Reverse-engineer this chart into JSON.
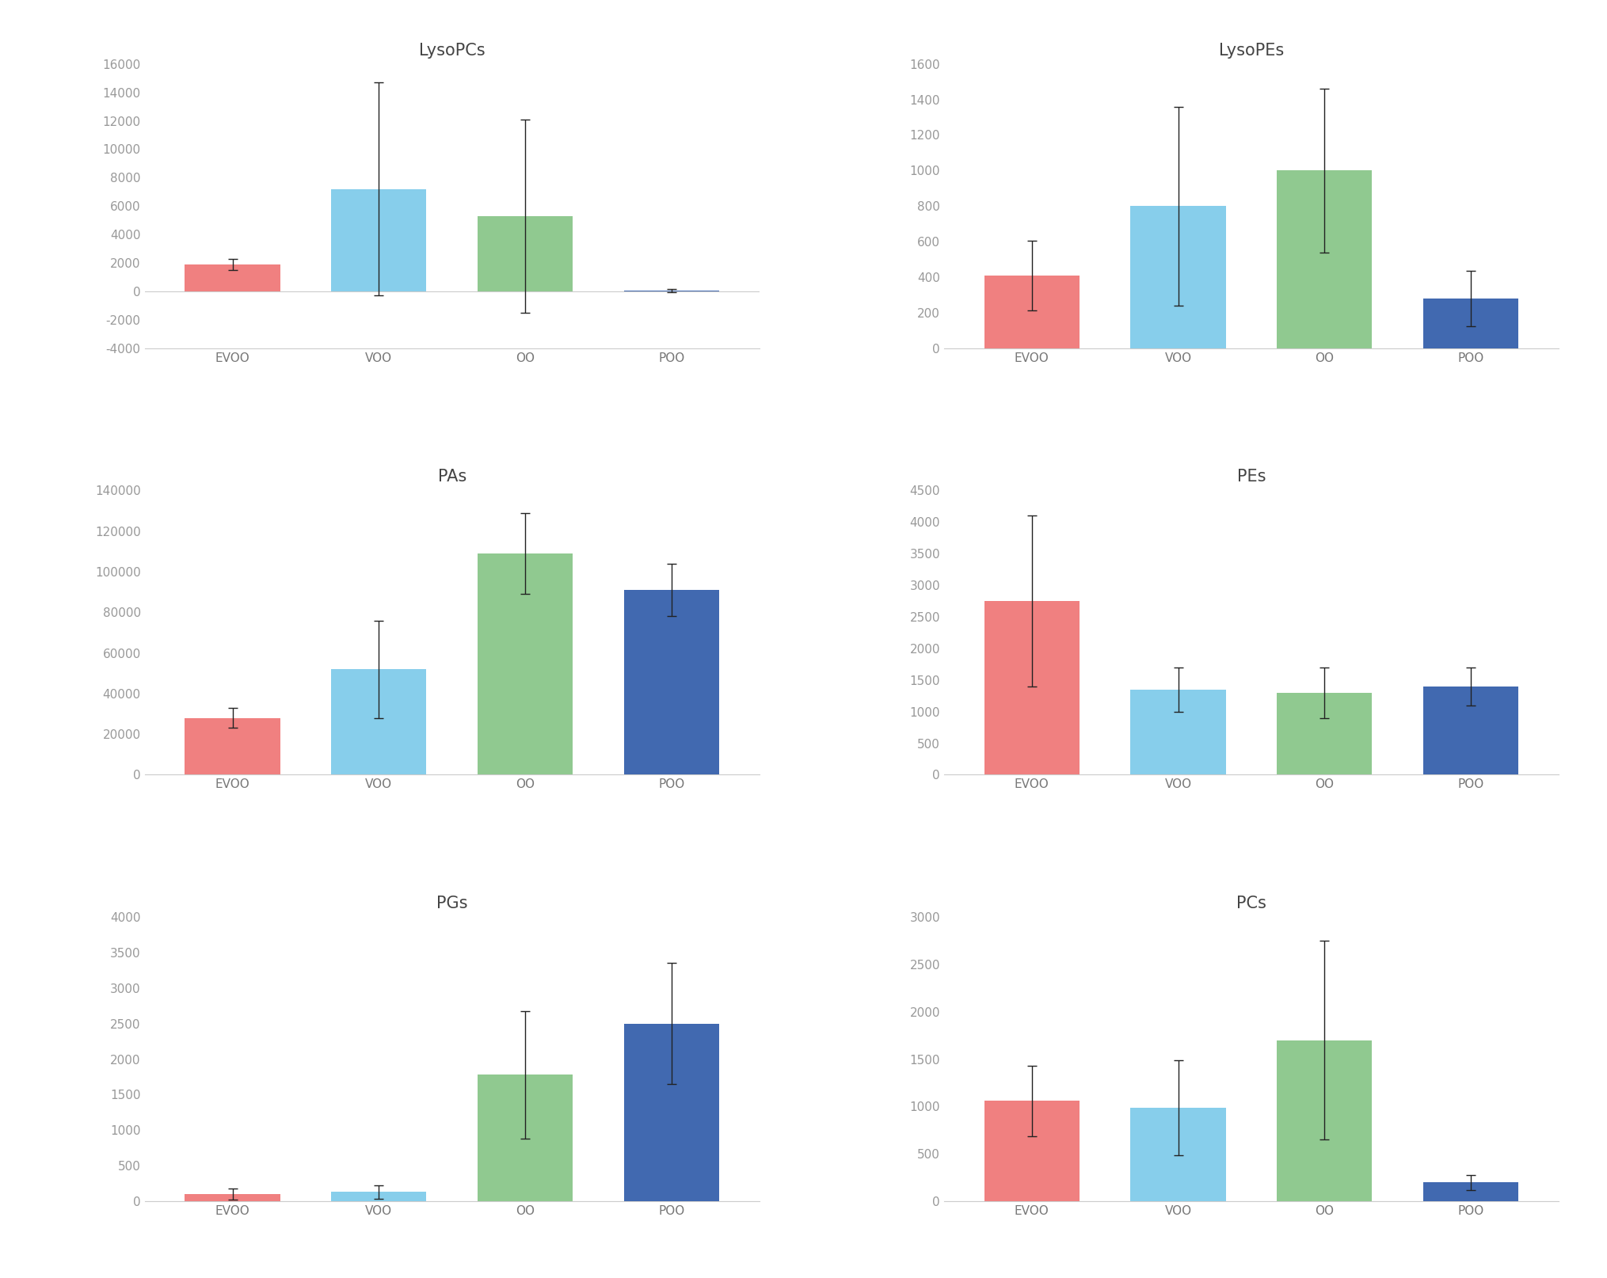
{
  "charts": [
    {
      "title": "LysoPCs",
      "values": [
        1900,
        7200,
        5300,
        50
      ],
      "errors": [
        400,
        7500,
        6800,
        100
      ],
      "ylim": [
        -4000,
        16000
      ],
      "yticks": [
        -4000,
        -2000,
        0,
        2000,
        4000,
        6000,
        8000,
        10000,
        12000,
        14000,
        16000
      ]
    },
    {
      "title": "LysoPEs",
      "values": [
        410,
        800,
        1000,
        280
      ],
      "errors": [
        195,
        560,
        460,
        155
      ],
      "ylim": [
        0,
        1600
      ],
      "yticks": [
        0,
        200,
        400,
        600,
        800,
        1000,
        1200,
        1400,
        1600
      ]
    },
    {
      "title": "PAs",
      "values": [
        28000,
        52000,
        109000,
        91000
      ],
      "errors": [
        5000,
        24000,
        20000,
        13000
      ],
      "ylim": [
        0,
        140000
      ],
      "yticks": [
        0,
        20000,
        40000,
        60000,
        80000,
        100000,
        120000,
        140000
      ]
    },
    {
      "title": "PEs",
      "values": [
        2750,
        1350,
        1300,
        1400
      ],
      "errors": [
        1350,
        350,
        400,
        300
      ],
      "ylim": [
        0,
        4500
      ],
      "yticks": [
        0,
        500,
        1000,
        1500,
        2000,
        2500,
        3000,
        3500,
        4000,
        4500
      ]
    },
    {
      "title": "PGs",
      "values": [
        100,
        130,
        1780,
        2500
      ],
      "errors": [
        80,
        90,
        900,
        850
      ],
      "ylim": [
        0,
        4000
      ],
      "yticks": [
        0,
        500,
        1000,
        1500,
        2000,
        2500,
        3000,
        3500,
        4000
      ]
    },
    {
      "title": "PCs",
      "values": [
        1060,
        990,
        1700,
        200
      ],
      "errors": [
        370,
        500,
        1050,
        80
      ],
      "ylim": [
        0,
        3000
      ],
      "yticks": [
        0,
        500,
        1000,
        1500,
        2000,
        2500,
        3000
      ]
    }
  ],
  "categories": [
    "EVOO",
    "VOO",
    "OO",
    "POO"
  ],
  "bar_colors": [
    "#F08080",
    "#87CEEB",
    "#90C990",
    "#4169B0"
  ],
  "bar_width": 0.65,
  "background_color": "#ffffff",
  "error_color": "#222222",
  "title_fontsize": 15,
  "tick_fontsize": 11,
  "label_fontsize": 11,
  "tick_color": "#999999",
  "label_color": "#777777"
}
